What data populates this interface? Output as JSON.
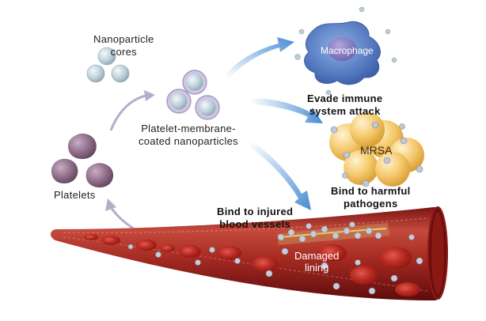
{
  "labels": {
    "cores": [
      "Nanoparticle",
      "cores"
    ],
    "coated": [
      "Platelet-membrane-",
      "coated nanoparticles"
    ],
    "platelets": "Platelets",
    "macrophage": "Macrophage",
    "evade": [
      "Evade immune",
      "system attack"
    ],
    "mrsa": "MRSA",
    "pathogens": [
      "Bind to harmful",
      "pathogens"
    ],
    "injured": [
      "Bind to injured",
      "blood vessels"
    ],
    "damaged": [
      "Damaged",
      "lining"
    ]
  },
  "colors": {
    "nanoparticle": "#b9cdd6",
    "coating": "#a8a0c2",
    "platelet": "#8c6b87",
    "macrophage": "#4a6fb8",
    "mrsa": "#f0c060",
    "vessel": "#9c1f1f",
    "arrow_blue": "#4f92d4",
    "arrow_gray": "#a9a4c0"
  },
  "icons": [
    "nanoparticle-core-icon",
    "coated-nanoparticle-icon",
    "platelet-icon",
    "macrophage-icon",
    "mrsa-cluster-icon",
    "blood-vessel-icon",
    "red-blood-cell-icon"
  ]
}
